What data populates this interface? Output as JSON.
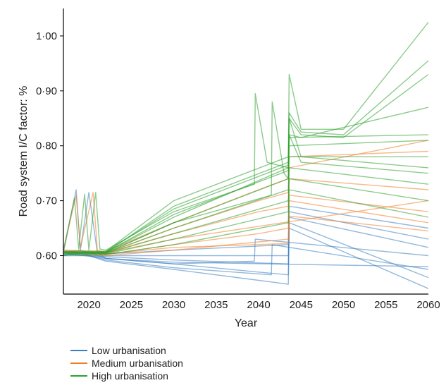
{
  "chart_data": {
    "type": "line",
    "title": "",
    "xlabel": "Year",
    "ylabel": "Road system I/C factor: %",
    "xlim": [
      2017,
      2060
    ],
    "ylim": [
      0.53,
      1.05
    ],
    "x_ticks": [
      2020,
      2025,
      2030,
      2035,
      2040,
      2045,
      2050,
      2055,
      2060
    ],
    "x_tick_labels": [
      "2020",
      "2025",
      "2030",
      "2035",
      "2040",
      "2045",
      "2050",
      "2055",
      "2060"
    ],
    "y_ticks": [
      0.6,
      0.7,
      0.8,
      0.9,
      1.0
    ],
    "y_tick_labels": [
      "0·60",
      "0·70",
      "0·80",
      "0·90",
      "1·00"
    ],
    "grid": false,
    "legend_position": "bottom-left",
    "note": "Each scenario group is an ensemble of many overlapping semi-transparent trajectories; series below give representative envelope trajectories.",
    "series": [
      {
        "name": "Low urbanisation",
        "color": "#3a7dbf",
        "lines": [
          {
            "x": [
              2017,
              2019,
              2022,
              2030,
              2040,
              2043.5,
              2043.6,
              2060
            ],
            "y": [
              0.6,
              0.605,
              0.59,
              0.575,
              0.555,
              0.548,
              0.65,
              0.54
            ]
          },
          {
            "x": [
              2017,
              2019,
              2022,
              2030,
              2040,
              2043.5,
              2043.6,
              2060
            ],
            "y": [
              0.605,
              0.61,
              0.595,
              0.585,
              0.57,
              0.565,
              0.66,
              0.56
            ]
          },
          {
            "x": [
              2017,
              2019,
              2022,
              2030,
              2041.5,
              2041.6,
              2060
            ],
            "y": [
              0.6,
              0.605,
              0.592,
              0.578,
              0.565,
              0.62,
              0.575
            ]
          },
          {
            "x": [
              2017,
              2022,
              2030,
              2039.5,
              2039.6,
              2060
            ],
            "y": [
              0.605,
              0.595,
              0.585,
              0.59,
              0.63,
              0.6
            ]
          },
          {
            "x": [
              2017,
              2022,
              2030,
              2043.5,
              2043.6,
              2060
            ],
            "y": [
              0.602,
              0.598,
              0.592,
              0.585,
              0.67,
              0.615
            ]
          },
          {
            "x": [
              2017,
              2022,
              2030,
              2043.5,
              2043.6,
              2060
            ],
            "y": [
              0.6,
              0.6,
              0.6,
              0.6,
              0.68,
              0.63
            ]
          },
          {
            "x": [
              2017,
              2018.5,
              2019,
              2020,
              2021,
              2022,
              2030,
              2060
            ],
            "y": [
              0.605,
              0.72,
              0.61,
              0.715,
              0.605,
              0.595,
              0.588,
              0.58
            ]
          },
          {
            "x": [
              2017,
              2022,
              2030,
              2043.5,
              2043.6,
              2060
            ],
            "y": [
              0.608,
              0.603,
              0.61,
              0.62,
              0.69,
              0.65
            ]
          }
        ]
      },
      {
        "name": "Medium urbanisation",
        "color": "#f07d2a",
        "lines": [
          {
            "x": [
              2017,
              2022,
              2030,
              2040,
              2043.5,
              2043.6,
              2060
            ],
            "y": [
              0.605,
              0.6,
              0.61,
              0.625,
              0.63,
              0.7,
              0.66
            ]
          },
          {
            "x": [
              2017,
              2022,
              2030,
              2040,
              2043.5,
              2043.6,
              2060
            ],
            "y": [
              0.608,
              0.602,
              0.62,
              0.64,
              0.65,
              0.71,
              0.68
            ]
          },
          {
            "x": [
              2017,
              2022,
              2030,
              2040,
              2043.5,
              2043.6,
              2060
            ],
            "y": [
              0.61,
              0.605,
              0.64,
              0.68,
              0.69,
              0.74,
              0.72
            ]
          },
          {
            "x": [
              2017,
              2022,
              2030,
              2040,
              2043.5,
              2043.6,
              2060
            ],
            "y": [
              0.61,
              0.608,
              0.66,
              0.72,
              0.74,
              0.78,
              0.79
            ]
          },
          {
            "x": [
              2017,
              2018.5,
              2019,
              2020.5,
              2021,
              2022,
              2030,
              2060
            ],
            "y": [
              0.61,
              0.71,
              0.615,
              0.715,
              0.61,
              0.605,
              0.63,
              0.7
            ]
          },
          {
            "x": [
              2017,
              2022,
              2030,
              2043.5,
              2043.6,
              2060
            ],
            "y": [
              0.605,
              0.603,
              0.615,
              0.622,
              0.672,
              0.645
            ]
          },
          {
            "x": [
              2017,
              2022,
              2030,
              2040,
              2043.5,
              2043.6,
              2060
            ],
            "y": [
              0.606,
              0.604,
              0.65,
              0.7,
              0.715,
              0.76,
              0.81
            ]
          }
        ]
      },
      {
        "name": "High urbanisation",
        "color": "#2ca02c",
        "lines": [
          {
            "x": [
              2017,
              2018.3,
              2018.8,
              2019.5,
              2020,
              2020.8,
              2021.3,
              2022,
              2030,
              2039.5,
              2039.6,
              2041,
              2043.5,
              2043.6,
              2045,
              2060
            ],
            "y": [
              0.61,
              0.705,
              0.612,
              0.712,
              0.61,
              0.715,
              0.612,
              0.61,
              0.68,
              0.73,
              0.895,
              0.77,
              0.76,
              0.85,
              0.78,
              0.76
            ]
          },
          {
            "x": [
              2017,
              2022,
              2030,
              2041.5,
              2041.6,
              2043,
              2043.5,
              2043.6,
              2045,
              2060
            ],
            "y": [
              0.605,
              0.605,
              0.66,
              0.71,
              0.88,
              0.75,
              0.74,
              0.82,
              0.77,
              0.75
            ]
          },
          {
            "x": [
              2017,
              2022,
              2030,
              2043.5,
              2043.6,
              2045,
              2050,
              2060
            ],
            "y": [
              0.608,
              0.608,
              0.7,
              0.78,
              0.93,
              0.83,
              0.83,
              1.025
            ]
          },
          {
            "x": [
              2017,
              2022,
              2030,
              2043.5,
              2043.6,
              2045,
              2050,
              2060
            ],
            "y": [
              0.606,
              0.606,
              0.69,
              0.77,
              0.86,
              0.825,
              0.82,
              0.955
            ]
          },
          {
            "x": [
              2017,
              2022,
              2030,
              2043.5,
              2043.6,
              2045,
              2050,
              2060
            ],
            "y": [
              0.607,
              0.607,
              0.685,
              0.765,
              0.85,
              0.82,
              0.815,
              0.93
            ]
          },
          {
            "x": [
              2017,
              2022,
              2030,
              2043.5,
              2043.6,
              2045,
              2060
            ],
            "y": [
              0.606,
              0.606,
              0.67,
              0.76,
              0.82,
              0.815,
              0.87
            ]
          },
          {
            "x": [
              2017,
              2022,
              2030,
              2043.5,
              2043.6,
              2060
            ],
            "y": [
              0.605,
              0.605,
              0.65,
              0.72,
              0.78,
              0.78
            ]
          },
          {
            "x": [
              2017,
              2022,
              2030,
              2043.5,
              2043.6,
              2060
            ],
            "y": [
              0.603,
              0.603,
              0.63,
              0.68,
              0.74,
              0.7
            ]
          },
          {
            "x": [
              2017,
              2022,
              2030,
              2043.5,
              2043.6,
              2060
            ],
            "y": [
              0.602,
              0.602,
              0.62,
              0.66,
              0.72,
              0.67
            ]
          },
          {
            "x": [
              2017,
              2022,
              2030,
              2043.5,
              2043.6,
              2060
            ],
            "y": [
              0.604,
              0.604,
              0.64,
              0.7,
              0.76,
              0.73
            ]
          },
          {
            "x": [
              2017,
              2022,
              2030,
              2043.5,
              2043.6,
              2060
            ],
            "y": [
              0.605,
              0.605,
              0.66,
              0.74,
              0.8,
              0.81
            ]
          },
          {
            "x": [
              2017,
              2022,
              2030,
              2043.5,
              2043.6,
              2060
            ],
            "y": [
              0.606,
              0.606,
              0.675,
              0.755,
              0.815,
              0.82
            ]
          }
        ]
      }
    ]
  }
}
